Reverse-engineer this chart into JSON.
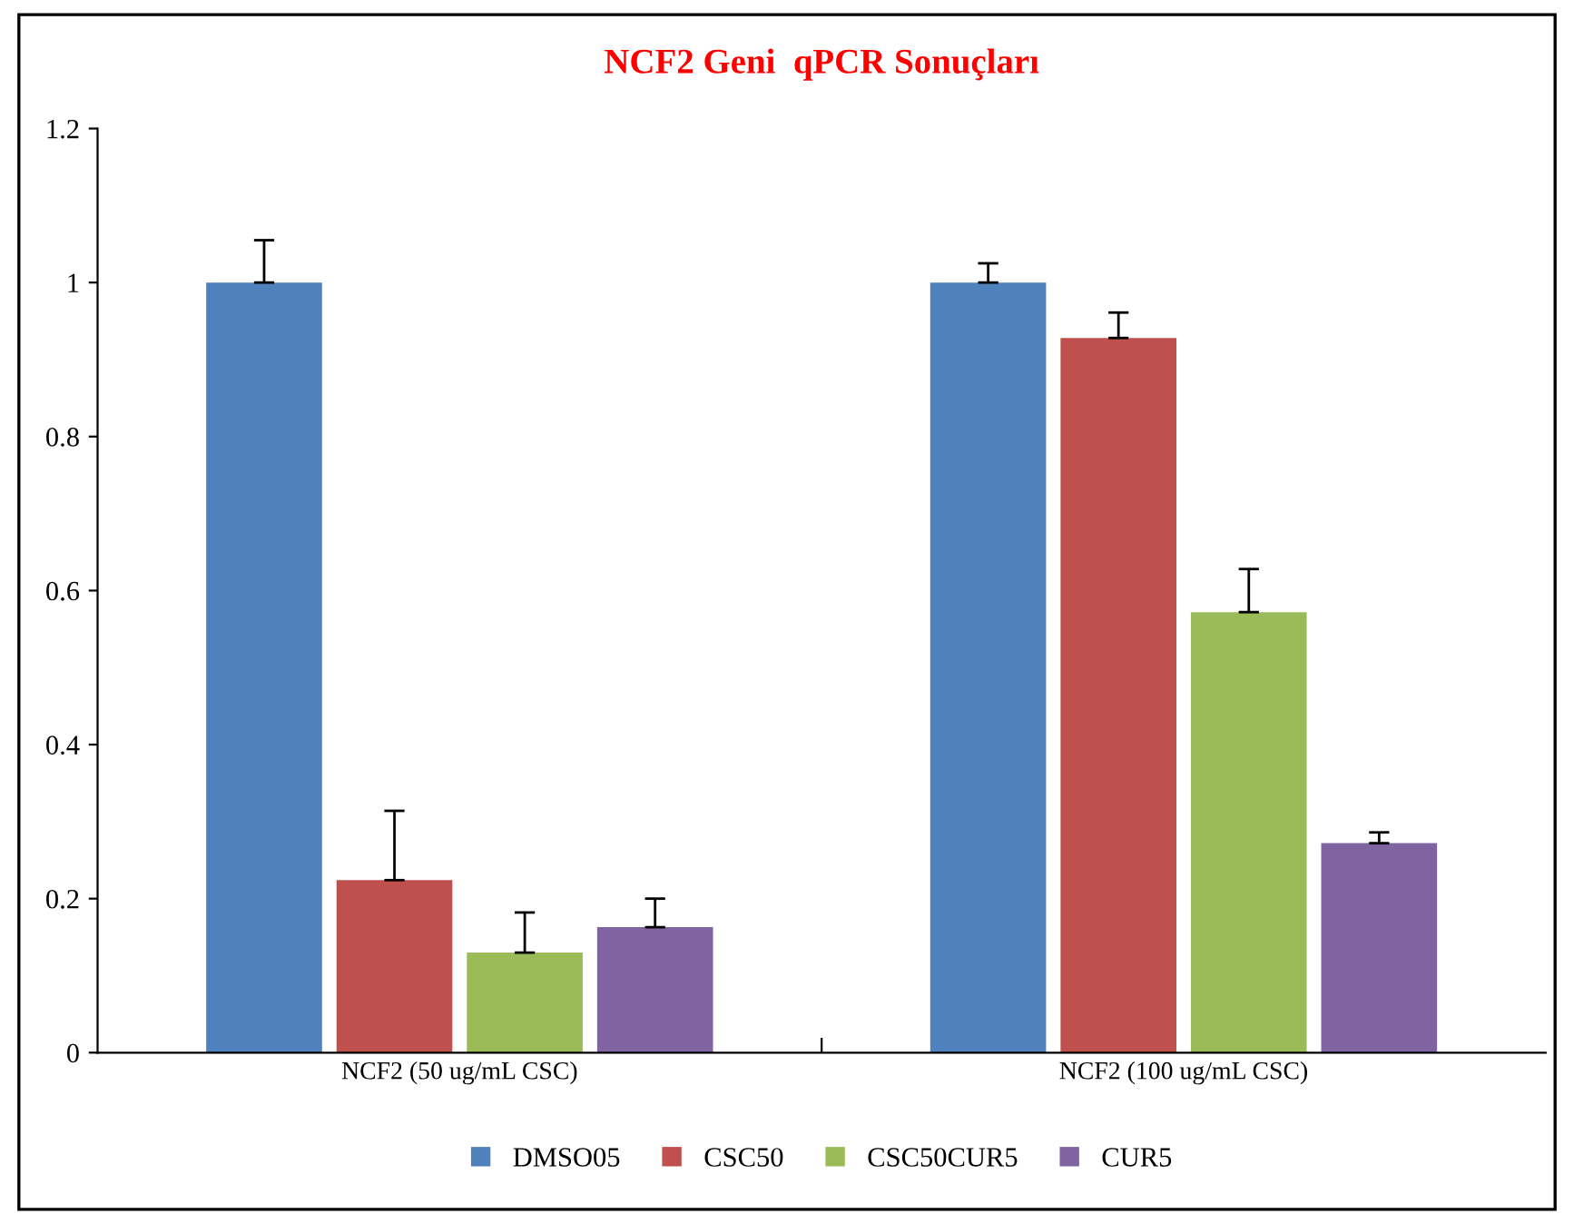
{
  "chart_data": {
    "type": "bar",
    "title": "NCF2 Geni  qPCR Sonuçları",
    "categories": [
      "NCF2 (50 ug/mL CSC)",
      "NCF2 (100 ug/mL CSC)"
    ],
    "series": [
      {
        "name": "DMSO05",
        "color": "#4f81bd",
        "values": [
          1.0,
          1.0
        ],
        "errors": [
          [
            1.0,
            1.055
          ],
          [
            1.0,
            1.025
          ]
        ]
      },
      {
        "name": "CSC50",
        "color": "#c0504d",
        "values": [
          0.224,
          0.928
        ],
        "errors": [
          [
            0.224,
            0.314
          ],
          [
            0.928,
            0.961
          ]
        ]
      },
      {
        "name": "CSC50CUR5",
        "color": "#9bbb59",
        "values": [
          0.13,
          0.572
        ],
        "errors": [
          [
            0.13,
            0.182
          ],
          [
            0.572,
            0.628
          ]
        ]
      },
      {
        "name": "CUR5",
        "color": "#8064a2",
        "values": [
          0.163,
          0.272
        ],
        "errors": [
          [
            0.163,
            0.2
          ],
          [
            0.272,
            0.286
          ]
        ]
      }
    ],
    "ylim": [
      0,
      1.2
    ],
    "yticks": [
      0,
      0.2,
      0.4,
      0.6,
      0.8,
      1,
      1.2
    ],
    "grid": false,
    "legend": "bottom"
  }
}
